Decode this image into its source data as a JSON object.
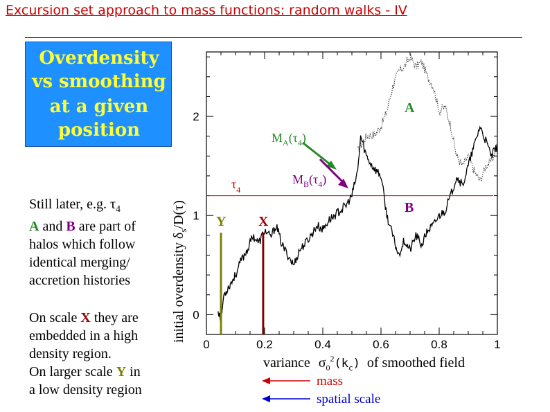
{
  "title": "Excursion set approach to mass functions: random walks - IV",
  "box": {
    "line1": "Overdensity",
    "line2": "vs smoothing",
    "line3": "at a given",
    "line4": "position"
  },
  "colors": {
    "box_bg": "#1e90ff",
    "box_text": "#ffff33",
    "title": "#cc0000",
    "A": "#228b22",
    "B": "#800080",
    "X": "#990000",
    "Y": "#808000",
    "mass": "#cc0000",
    "spatial": "#0000cc"
  },
  "text": {
    "p1": "Still later, e.g. τ",
    "p1_sub": "4",
    "p2_A": "A",
    "p2_mid": " and ",
    "p2_B": "B",
    "p2_end": " are part of",
    "p3": "halos which follow",
    "p4": "identical merging/",
    "p5": "accretion histories",
    "p6_pre": "On scale ",
    "p6_X": "X",
    "p6_end": " they are",
    "p7": "embedded in a high",
    "p8": "density region.",
    "p9_pre": "On larger scale ",
    "p9_Y": "Y",
    "p9_end": " in",
    "p10": "a low density region"
  },
  "chart_data": {
    "type": "line",
    "xlim": [
      0,
      1
    ],
    "ylim": [
      -0.2,
      2.65
    ],
    "xticks": [
      "0",
      "0.2",
      "0.4",
      "0.6",
      "0.8",
      "1"
    ],
    "yticks": [
      "0",
      "1",
      "2"
    ],
    "ylabel": "initial overdensity δ",
    "ylabel_sub": "s",
    "ylabel_end": "/D(τ)",
    "xlabel_pre": "variance",
    "xlabel_sym": "σ",
    "xlabel_sub": "0",
    "xlabel_sup": "2",
    "xlabel_arg": "(k",
    "xlabel_argsub": "c",
    "xlabel_close": ")",
    "xlabel_end": "of smoothed field",
    "threshold": {
      "value": 1.2,
      "label": "τ",
      "label_sub": "4"
    },
    "markers": [
      {
        "name": "Y",
        "x": 0.05,
        "label": "Y"
      },
      {
        "name": "X",
        "x": 0.195,
        "label": "X"
      }
    ],
    "series": [
      {
        "name": "A",
        "x": [
          0.52,
          0.55,
          0.58,
          0.6,
          0.62,
          0.64,
          0.66,
          0.68,
          0.7,
          0.72,
          0.74,
          0.76,
          0.78,
          0.8,
          0.82,
          0.84,
          0.86,
          0.88,
          0.9,
          0.92,
          0.94,
          0.96,
          0.98,
          1.0
        ],
        "y": [
          1.65,
          1.8,
          1.82,
          1.9,
          2.05,
          2.3,
          2.45,
          2.5,
          2.6,
          2.5,
          2.55,
          2.4,
          2.3,
          2.05,
          2.1,
          1.9,
          1.6,
          1.5,
          1.6,
          1.45,
          1.35,
          1.5,
          1.55,
          1.7
        ]
      },
      {
        "name": "B",
        "x": [
          0.04,
          0.05,
          0.06,
          0.08,
          0.1,
          0.12,
          0.14,
          0.16,
          0.18,
          0.2,
          0.22,
          0.24,
          0.26,
          0.28,
          0.3,
          0.32,
          0.34,
          0.36,
          0.38,
          0.4,
          0.42,
          0.44,
          0.46,
          0.48,
          0.5,
          0.52,
          0.53,
          0.55,
          0.57,
          0.6,
          0.62,
          0.64,
          0.66,
          0.68,
          0.7,
          0.72,
          0.74,
          0.76,
          0.78,
          0.8,
          0.82,
          0.84,
          0.86,
          0.88,
          0.9,
          0.92,
          0.94,
          0.96,
          0.98,
          1.0
        ],
        "y": [
          0.05,
          -0.05,
          0.2,
          0.3,
          0.4,
          0.55,
          0.65,
          0.8,
          0.72,
          0.85,
          0.78,
          0.9,
          0.7,
          0.6,
          0.5,
          0.65,
          0.72,
          0.8,
          0.9,
          0.86,
          0.95,
          1.0,
          1.05,
          1.1,
          1.2,
          1.45,
          1.8,
          1.6,
          1.5,
          1.4,
          1.0,
          0.8,
          0.6,
          0.75,
          0.65,
          0.8,
          0.7,
          0.85,
          0.9,
          1.0,
          1.05,
          1.2,
          1.4,
          1.3,
          1.5,
          1.7,
          1.9,
          1.75,
          1.6,
          1.7
        ]
      }
    ],
    "labels": {
      "A": "A",
      "B": "B"
    },
    "annotations": {
      "MA_pre": "M",
      "MA_sub": "A",
      "MA_mid": "(τ",
      "MA_sub2": "4",
      "MA_end": ")",
      "MB_pre": "M",
      "MB_sub": "B",
      "MB_mid": "(τ",
      "MB_sub2": "4",
      "MB_end": ")"
    },
    "legend": {
      "mass": "mass",
      "spatial": "spatial scale"
    }
  }
}
